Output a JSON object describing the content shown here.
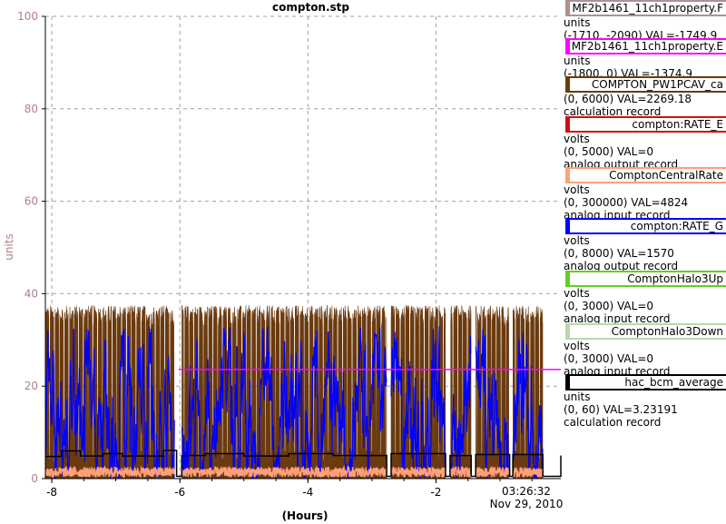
{
  "title": "compton.stp",
  "chart_data": {
    "type": "line",
    "title": "compton.stp",
    "xlabel": "(Hours)",
    "ylabel": "units",
    "xlim": [
      -8.1,
      -0.05
    ],
    "ylim": [
      0,
      100
    ],
    "grid": true,
    "y_ticks": [
      "0",
      "20",
      "40",
      "60",
      "80",
      "100"
    ],
    "x_ticks": [
      "-8",
      "-6",
      "-4",
      "-2"
    ],
    "x_tick_values": [
      -8,
      -6,
      -4,
      -2
    ],
    "time_label": "03:26:32",
    "date_label": "Nov 29, 2010",
    "gap_intervals": [
      [
        -6.08,
        -5.97
      ],
      [
        -2.77,
        -2.7
      ],
      [
        -1.85,
        -1.77
      ],
      [
        -1.45,
        -1.38
      ],
      [
        -0.86,
        -0.8
      ],
      [
        -0.33,
        -0.05
      ]
    ],
    "series": [
      {
        "name": "MF2b1461_11ch1property.E",
        "color": "#ff00ff",
        "kind": "constant",
        "value": 23.6,
        "x_start": -6.02
      },
      {
        "name": "COMPTON_PW1PCAV_ca",
        "color": "#6b3a0f",
        "kind": "pulse",
        "high": [
          33,
          37.5
        ],
        "low": [
          3,
          6
        ],
        "cycle_hours": 0.075
      },
      {
        "name": "compton:RATE_G",
        "color": "#0000ff",
        "kind": "noise",
        "range": [
          0,
          33
        ],
        "typical": [
          5,
          25
        ]
      },
      {
        "name": "ComptonCentralRate",
        "color": "#ffa07a",
        "kind": "noise",
        "range": [
          0.3,
          2.5
        ]
      },
      {
        "name": "hac_bcm_average",
        "color": "#000000",
        "kind": "step",
        "points": [
          [
            -8.1,
            4.8
          ],
          [
            -7.85,
            6.0
          ],
          [
            -7.55,
            4.9
          ],
          [
            -7.2,
            5.4
          ],
          [
            -6.9,
            4.9
          ],
          [
            -6.25,
            6.1
          ],
          [
            -6.05,
            0.5
          ],
          [
            -5.97,
            5.0
          ],
          [
            -5.6,
            5.4
          ],
          [
            -5.0,
            4.9
          ],
          [
            -4.3,
            5.4
          ],
          [
            -3.6,
            5.0
          ],
          [
            -2.77,
            0.5
          ],
          [
            -2.7,
            5.4
          ],
          [
            -1.85,
            0.5
          ],
          [
            -1.78,
            5.0
          ],
          [
            -1.45,
            0.5
          ],
          [
            -1.38,
            5.2
          ],
          [
            -0.85,
            0.5
          ],
          [
            -0.8,
            5.2
          ],
          [
            -0.33,
            0.5
          ],
          [
            -0.05,
            5.0
          ]
        ]
      }
    ]
  },
  "legend": [
    {
      "name": "MF2b1461_11ch1property.F",
      "color": "#b09090",
      "units": "units",
      "range": "(-1710, -2090) VAL=-1749.9",
      "desc": ""
    },
    {
      "name": "MF2b1461_11ch1property.E",
      "color": "#ff00ff",
      "units": "units",
      "range": "(-1800, 0) VAL=-1374.9",
      "desc": ""
    },
    {
      "name": "COMPTON_PW1PCAV_ca",
      "color": "#6b3a0f",
      "units": "",
      "range": "(0, 6000) VAL=2269.18",
      "desc": "calculation record"
    },
    {
      "name": "compton:RATE_E",
      "color": "#d01010",
      "units": "volts",
      "range": "(0, 5000)  VAL=0",
      "desc": "analog output record"
    },
    {
      "name": "ComptonCentralRate",
      "color": "#ffa07a",
      "units": "volts",
      "range": "(0, 300000) VAL=4824",
      "desc": "analog input record"
    },
    {
      "name": "compton:RATE_G",
      "color": "#0000ff",
      "units": "volts",
      "range": "(0, 8000) VAL=1570",
      "desc": "analog output record"
    },
    {
      "name": "ComptonHalo3Up",
      "color": "#66cc22",
      "units": "volts",
      "range": "(0, 3000)  VAL=0",
      "desc": "analog input record"
    },
    {
      "name": "ComptonHalo3Down",
      "color": "#b8d8a8",
      "units": "volts",
      "range": "(0, 3000)  VAL=0",
      "desc": "analog input record"
    },
    {
      "name": "hac_bcm_average",
      "color": "#000000",
      "units": "units",
      "range": "(0, 60) VAL=3.23191",
      "desc": "calculation record"
    }
  ]
}
